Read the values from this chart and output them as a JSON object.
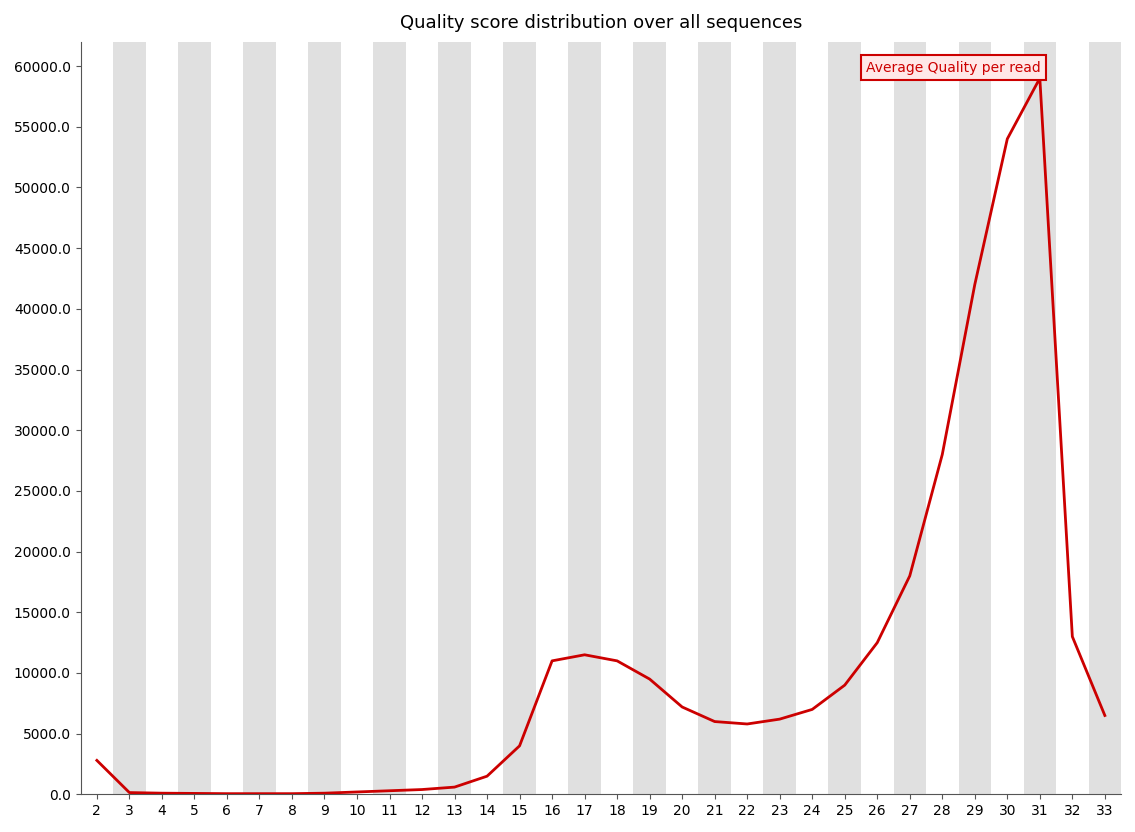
{
  "title": "Quality score distribution over all sequences",
  "x_values": [
    2,
    3,
    4,
    5,
    6,
    7,
    8,
    9,
    10,
    11,
    12,
    13,
    14,
    15,
    16,
    17,
    18,
    19,
    20,
    21,
    22,
    23,
    24,
    25,
    26,
    27,
    28,
    29,
    30,
    31,
    32,
    33
  ],
  "y_values": [
    2800,
    150,
    100,
    80,
    60,
    60,
    60,
    100,
    200,
    300,
    400,
    600,
    1500,
    4000,
    11000,
    11500,
    11000,
    9500,
    7200,
    6000,
    5800,
    6200,
    7000,
    9000,
    12500,
    18000,
    28000,
    42000,
    54000,
    59000,
    13000,
    6500
  ],
  "line_color": "#cc0000",
  "line_width": 2.0,
  "legend_label": "Average Quality per read",
  "legend_text_color": "#cc0000",
  "legend_box_facecolor": "#ffe8e8",
  "legend_box_edgecolor": "#cc0000",
  "ylim": [
    0,
    62000
  ],
  "yticks": [
    0.0,
    5000.0,
    10000.0,
    15000.0,
    20000.0,
    25000.0,
    30000.0,
    35000.0,
    40000.0,
    45000.0,
    50000.0,
    55000.0,
    60000.0
  ],
  "bg_color": "#ffffff",
  "stripe_color_white": "#ffffff",
  "stripe_color_gray": "#e0e0e0",
  "title_fontsize": 13,
  "axis_fontsize": 10,
  "spine_color": "#555555"
}
